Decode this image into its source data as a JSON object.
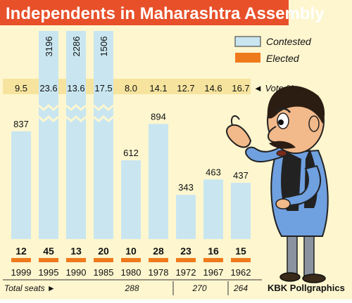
{
  "title": "Independents in Maharashtra Assembly",
  "legend": {
    "contested": "Contested",
    "elected": "Elected"
  },
  "vote_label": "◄ Vote %",
  "total_seats_label": "Total seats ►",
  "total_seats_groups": [
    {
      "years": [
        "1999",
        "1995",
        "1990",
        "1985",
        "1980",
        "1978"
      ],
      "seats": "288"
    },
    {
      "years": [
        "1972",
        "1967"
      ],
      "seats": "270"
    },
    {
      "years": [
        "1962"
      ],
      "seats": "264"
    }
  ],
  "credit": "KBK Pollgraphics",
  "colors": {
    "background": "#fdf6cf",
    "contested": "#c9e6f0",
    "elected": "#ef7a1c",
    "title_bg": "#e8502a",
    "vote_band": "#f6e49e"
  },
  "chart_data": {
    "type": "bar",
    "title": "Independents in Maharashtra Assembly",
    "categories": [
      "1999",
      "1995",
      "1990",
      "1985",
      "1980",
      "1978",
      "1972",
      "1967",
      "1962"
    ],
    "series": [
      {
        "name": "Contested",
        "values": [
          837,
          3196,
          2286,
          1506,
          612,
          894,
          343,
          463,
          437
        ],
        "axis_break": [
          false,
          true,
          true,
          true,
          false,
          false,
          false,
          false,
          false
        ]
      },
      {
        "name": "Elected",
        "values": [
          12,
          45,
          13,
          20,
          10,
          28,
          23,
          16,
          15
        ]
      }
    ],
    "vote_percent": {
      "label": "Vote %",
      "values": [
        9.5,
        23.6,
        13.6,
        17.5,
        8.0,
        14.1,
        12.7,
        14.6,
        16.7
      ]
    },
    "vote_percent_text": [
      "9.5",
      "23.6",
      "13.6",
      "17.5",
      "8.0",
      "14.1",
      "12.7",
      "14.6",
      "16.7"
    ]
  }
}
